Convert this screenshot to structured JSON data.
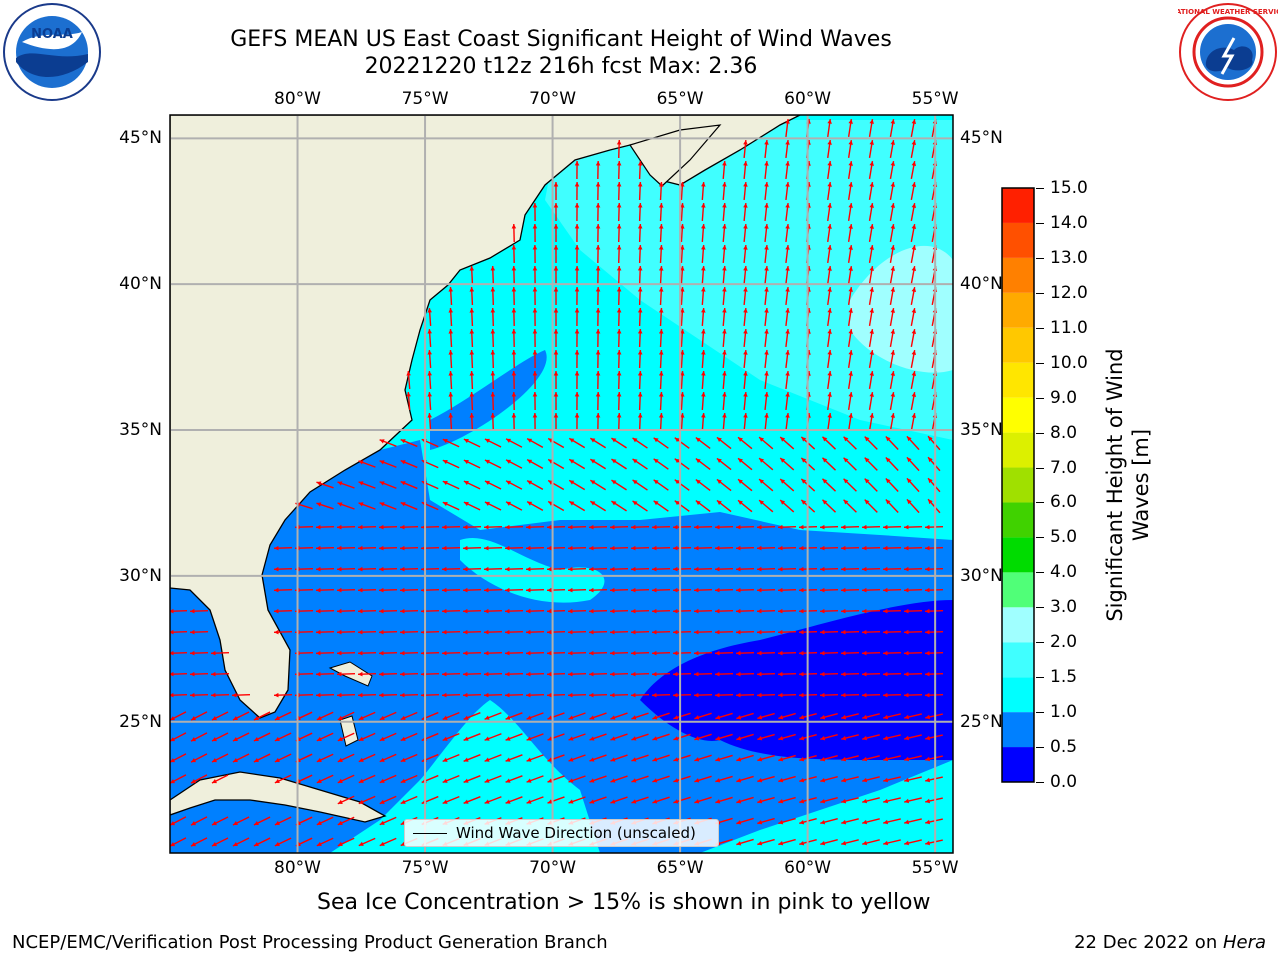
{
  "title": {
    "line1": "GEFS MEAN US East Coast Significant Height of Wind Waves",
    "line2": "20221220 t12z 216h fcst   Max: 2.36"
  },
  "axes": {
    "lon_ticks": [
      "80°W",
      "75°W",
      "70°W",
      "65°W",
      "60°W",
      "55°W"
    ],
    "lat_ticks": [
      "45°N",
      "40°N",
      "35°N",
      "30°N",
      "25°N"
    ],
    "lon_values": [
      -80,
      -75,
      -70,
      -65,
      -60,
      -55
    ],
    "lat_values": [
      45,
      40,
      35,
      30,
      25
    ],
    "lon_range": [
      -85,
      -54.3
    ],
    "lat_range": [
      20.5,
      45.8
    ]
  },
  "colorbar": {
    "label": "Significant Height of Wind Waves [m]",
    "ticks": [
      "0.0",
      "0.5",
      "1.0",
      "1.5",
      "2.0",
      "3.0",
      "4.0",
      "5.0",
      "6.0",
      "7.0",
      "8.0",
      "9.0",
      "10.0",
      "11.0",
      "12.0",
      "13.0",
      "14.0",
      "15.0"
    ],
    "colors": [
      "#0000ff",
      "#0080ff",
      "#00ffff",
      "#40ffff",
      "#a0ffff",
      "#50ff78",
      "#00dc00",
      "#40d200",
      "#a0e000",
      "#dcf000",
      "#ffff00",
      "#ffe600",
      "#ffc800",
      "#ffaa00",
      "#ff8000",
      "#ff5000",
      "#ff2000"
    ]
  },
  "legend": {
    "label": "Wind Wave Direction (unscaled)"
  },
  "colors": {
    "land": "#efefdc",
    "arrow": "#ff0000",
    "grid": "#b0b0b0"
  },
  "logos": {
    "left_text": "NOAA",
    "right_text": "NATIONAL WEATHER SERVICE"
  },
  "notes": {
    "sea_ice": "Sea Ice Concentration > 15% is shown in pink to yellow"
  },
  "footer": {
    "left": "NCEP/EMC/Verification Post Processing Product Generation Branch",
    "date": "22 Dec 2022 on ",
    "machine": "Hera"
  }
}
